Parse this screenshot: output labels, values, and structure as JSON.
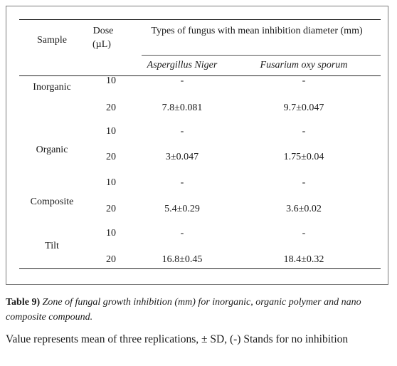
{
  "table": {
    "headers": {
      "sample": "Sample",
      "dose_line1": "Dose",
      "dose_line2": "(µL)",
      "types": "Types of fungus with mean inhibition diameter (mm)",
      "fungus1": "Aspergillus Niger",
      "fungus2": "Fusarium oxy sporum"
    },
    "rows": [
      {
        "sample": "Inorganic",
        "dose": "10",
        "aspergillus": "-",
        "fusarium": "-"
      },
      {
        "sample": "",
        "dose": "20",
        "aspergillus": "7.8±0.081",
        "fusarium": "9.7±0.047"
      },
      {
        "sample": "Organic",
        "dose": "10",
        "aspergillus": "-",
        "fusarium": "-"
      },
      {
        "sample": "",
        "dose": "20",
        "aspergillus": "3±0.047",
        "fusarium": "1.75±0.04"
      },
      {
        "sample": "Composite",
        "dose": "10",
        "aspergillus": "-",
        "fusarium": "-"
      },
      {
        "sample": "",
        "dose": "20",
        "aspergillus": "5.4±0.29",
        "fusarium": "3.6±0.02"
      },
      {
        "sample": "Tilt",
        "dose": "10",
        "aspergillus": "-",
        "fusarium": "-"
      },
      {
        "sample": "",
        "dose": "20",
        "aspergillus": "16.8±0.45",
        "fusarium": "18.4±0.32"
      }
    ]
  },
  "caption": {
    "label": "Table 9)",
    "text": "Zone of fungal growth inhibition (mm) for inorganic, organic polymer and nano composite compound."
  },
  "note": "Value represents mean of three replications, ± SD, (-) Stands for no inhibition"
}
